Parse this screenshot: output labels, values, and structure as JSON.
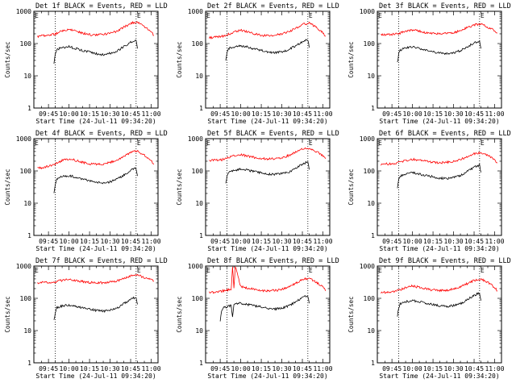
{
  "figure": {
    "background": "#ffffff",
    "series_colors": {
      "events": "#000000",
      "lld": "#ff0000"
    },
    "panel_type": "line",
    "y_scale": "log",
    "y_ylim": [
      1,
      1000
    ],
    "ylabel": "Counts/sec",
    "xlabel": "Start Time (24-Jul-11 09:34:20)",
    "x_tick_labels": [
      "09:45",
      "10:00",
      "10:15",
      "10:30",
      "10:45",
      "11:00"
    ],
    "y_tick_labels": [
      "1",
      "10",
      "100",
      "1000"
    ],
    "marker_labels": [
      "E",
      "E"
    ],
    "vertical_dotted_lines": [
      "09:50",
      "10:49"
    ]
  },
  "chart_data": [
    {
      "type": "line",
      "title": "Det 1f BLACK = Events, RED = LLD",
      "xlabel": "Start Time (24-Jul-11 09:34:20)",
      "ylabel": "Counts/sec",
      "yscale": "log",
      "ylim": [
        1,
        1000
      ],
      "x_tick_labels": [
        "09:45",
        "10:00",
        "10:15",
        "10:30",
        "10:45",
        "11:00"
      ],
      "y_tick_labels": [
        "1",
        "10",
        "100",
        "1000"
      ],
      "series": [
        {
          "x": [
            "09:37",
            "09:42",
            "09:47",
            "09:50",
            "09:55",
            "10:00",
            "10:05",
            "10:10",
            "10:15",
            "10:20",
            "10:25",
            "10:30",
            "10:35",
            "10:40",
            "10:45",
            "10:50",
            "10:55",
            "11:00",
            "11:02"
          ],
          "values": [
            165,
            175,
            185,
            200,
            250,
            275,
            240,
            210,
            190,
            185,
            190,
            210,
            240,
            320,
            420,
            480,
            330,
            230,
            180
          ],
          "color": "#ff0000"
        },
        {
          "x": [
            "09:49",
            "09:50",
            "09:51",
            "09:55",
            "10:00",
            "10:05",
            "10:10",
            "10:15",
            "10:20",
            "10:25",
            "10:30",
            "10:35",
            "10:40",
            "10:45",
            "10:49",
            "10:50"
          ],
          "values": [
            25,
            45,
            65,
            75,
            80,
            70,
            60,
            55,
            48,
            45,
            50,
            58,
            80,
            110,
            125,
            70
          ],
          "color": "#000000"
        }
      ]
    },
    {
      "type": "line",
      "title": "Det 2f BLACK = Events, RED = LLD",
      "xlabel": "Start Time (24-Jul-11 09:34:20)",
      "ylabel": "Counts/sec",
      "yscale": "log",
      "ylim": [
        1,
        1000
      ],
      "x_tick_labels": [
        "09:45",
        "10:00",
        "10:15",
        "10:30",
        "10:45",
        "11:00"
      ],
      "y_tick_labels": [
        "1",
        "10",
        "100",
        "1000"
      ],
      "series": [
        {
          "x": [
            "09:37",
            "09:42",
            "09:47",
            "09:50",
            "09:55",
            "10:00",
            "10:05",
            "10:10",
            "10:15",
            "10:20",
            "10:25",
            "10:30",
            "10:35",
            "10:40",
            "10:45",
            "10:50",
            "10:55",
            "11:00",
            "11:02"
          ],
          "values": [
            150,
            160,
            170,
            185,
            230,
            260,
            230,
            200,
            180,
            175,
            180,
            200,
            230,
            300,
            390,
            430,
            320,
            220,
            170
          ],
          "color": "#ff0000"
        },
        {
          "x": [
            "09:49",
            "09:50",
            "09:51",
            "09:55",
            "10:00",
            "10:05",
            "10:10",
            "10:15",
            "10:20",
            "10:25",
            "10:30",
            "10:35",
            "10:40",
            "10:45",
            "10:49",
            "10:50"
          ],
          "values": [
            30,
            55,
            70,
            80,
            85,
            78,
            68,
            62,
            55,
            52,
            56,
            65,
            85,
            115,
            130,
            75
          ],
          "color": "#000000"
        }
      ]
    },
    {
      "type": "line",
      "title": "Det 3f BLACK = Events, RED = LLD",
      "xlabel": "Start Time (24-Jul-11 09:34:20)",
      "ylabel": "Counts/sec",
      "yscale": "log",
      "ylim": [
        1,
        1000
      ],
      "x_tick_labels": [
        "09:45",
        "10:00",
        "10:15",
        "10:30",
        "10:45",
        "11:00"
      ],
      "y_tick_labels": [
        "1",
        "10",
        "100",
        "1000"
      ],
      "series": [
        {
          "x": [
            "09:37",
            "09:42",
            "09:47",
            "09:50",
            "09:55",
            "10:00",
            "10:05",
            "10:10",
            "10:15",
            "10:20",
            "10:25",
            "10:30",
            "10:35",
            "10:40",
            "10:45",
            "10:50",
            "10:55",
            "11:00",
            "11:02"
          ],
          "values": [
            185,
            190,
            195,
            205,
            240,
            260,
            240,
            220,
            205,
            200,
            205,
            220,
            250,
            310,
            380,
            410,
            320,
            250,
            210
          ],
          "color": "#ff0000"
        },
        {
          "x": [
            "09:49",
            "09:50",
            "09:51",
            "09:55",
            "10:00",
            "10:05",
            "10:10",
            "10:15",
            "10:20",
            "10:25",
            "10:30",
            "10:35",
            "10:40",
            "10:45",
            "10:49",
            "10:50"
          ],
          "values": [
            25,
            50,
            62,
            72,
            78,
            70,
            62,
            56,
            50,
            48,
            52,
            60,
            78,
            105,
            120,
            70
          ],
          "color": "#000000"
        }
      ]
    },
    {
      "type": "line",
      "title": "Det 4f BLACK = Events, RED = LLD",
      "xlabel": "Start Time (24-Jul-11 09:34:20)",
      "ylabel": "Counts/sec",
      "yscale": "log",
      "ylim": [
        1,
        1000
      ],
      "x_tick_labels": [
        "09:45",
        "10:00",
        "10:15",
        "10:30",
        "10:45",
        "11:00"
      ],
      "y_tick_labels": [
        "1",
        "10",
        "100",
        "1000"
      ],
      "series": [
        {
          "x": [
            "09:37",
            "09:42",
            "09:47",
            "09:50",
            "09:55",
            "10:00",
            "10:05",
            "10:10",
            "10:15",
            "10:20",
            "10:25",
            "10:30",
            "10:35",
            "10:40",
            "10:45",
            "10:50",
            "10:55",
            "11:00",
            "11:02"
          ],
          "values": [
            120,
            130,
            145,
            165,
            210,
            240,
            210,
            185,
            165,
            160,
            165,
            185,
            215,
            290,
            380,
            420,
            310,
            210,
            160
          ],
          "color": "#ff0000"
        },
        {
          "x": [
            "09:49",
            "09:50",
            "09:51",
            "09:55",
            "10:00",
            "10:05",
            "10:10",
            "10:15",
            "10:20",
            "10:25",
            "10:30",
            "10:35",
            "10:40",
            "10:45",
            "10:49",
            "10:50"
          ],
          "values": [
            22,
            40,
            58,
            68,
            72,
            64,
            55,
            50,
            44,
            42,
            46,
            55,
            75,
            105,
            120,
            70
          ],
          "color": "#000000"
        }
      ]
    },
    {
      "type": "line",
      "title": "Det 5f BLACK = Events, RED = LLD",
      "xlabel": "Start Time (24-Jul-11 09:34:20)",
      "ylabel": "Counts/sec",
      "yscale": "log",
      "ylim": [
        1,
        1000
      ],
      "x_tick_labels": [
        "09:45",
        "10:00",
        "10:15",
        "10:30",
        "10:45",
        "11:00"
      ],
      "y_tick_labels": [
        "1",
        "10",
        "100",
        "1000"
      ],
      "series": [
        {
          "x": [
            "09:37",
            "09:42",
            "09:47",
            "09:50",
            "09:55",
            "10:00",
            "10:05",
            "10:10",
            "10:15",
            "10:20",
            "10:25",
            "10:30",
            "10:35",
            "10:40",
            "10:45",
            "10:50",
            "10:55",
            "11:00",
            "11:02"
          ],
          "values": [
            210,
            215,
            225,
            250,
            300,
            320,
            290,
            260,
            240,
            235,
            240,
            260,
            300,
            380,
            470,
            510,
            400,
            300,
            240
          ],
          "color": "#ff0000"
        },
        {
          "x": [
            "09:49",
            "09:50",
            "09:51",
            "09:55",
            "10:00",
            "10:05",
            "10:10",
            "10:15",
            "10:20",
            "10:25",
            "10:30",
            "10:35",
            "10:40",
            "10:45",
            "10:49",
            "10:50"
          ],
          "values": [
            40,
            70,
            90,
            105,
            115,
            105,
            95,
            88,
            80,
            78,
            82,
            92,
            120,
            165,
            190,
            110
          ],
          "color": "#000000"
        }
      ]
    },
    {
      "type": "line",
      "title": "Det 6f BLACK = Events, RED = LLD",
      "xlabel": "Start Time (24-Jul-11 09:34:20)",
      "ylabel": "Counts/sec",
      "yscale": "log",
      "ylim": [
        1,
        1000
      ],
      "x_tick_labels": [
        "09:45",
        "10:00",
        "10:15",
        "10:30",
        "10:45",
        "11:00"
      ],
      "y_tick_labels": [
        "1",
        "10",
        "100",
        "1000"
      ],
      "series": [
        {
          "x": [
            "09:37",
            "09:42",
            "09:47",
            "09:50",
            "09:55",
            "10:00",
            "10:05",
            "10:10",
            "10:15",
            "10:20",
            "10:25",
            "10:30",
            "10:35",
            "10:40",
            "10:45",
            "10:50",
            "10:55",
            "11:00",
            "11:02"
          ],
          "values": [
            160,
            165,
            170,
            180,
            210,
            230,
            215,
            200,
            185,
            180,
            185,
            200,
            225,
            275,
            340,
            370,
            300,
            220,
            180
          ],
          "color": "#ff0000"
        },
        {
          "x": [
            "09:49",
            "09:50",
            "09:51",
            "09:55",
            "10:00",
            "10:05",
            "10:10",
            "10:15",
            "10:20",
            "10:25",
            "10:30",
            "10:35",
            "10:40",
            "10:45",
            "10:49",
            "10:50"
          ],
          "values": [
            30,
            55,
            70,
            80,
            88,
            80,
            72,
            66,
            60,
            58,
            62,
            72,
            95,
            130,
            150,
            90
          ],
          "color": "#000000"
        }
      ]
    },
    {
      "type": "line",
      "title": "Det 7f BLACK = Events, RED = LLD",
      "xlabel": "Start Time (24-Jul-11 09:34:20)",
      "ylabel": "Counts/sec",
      "yscale": "log",
      "ylim": [
        1,
        1000
      ],
      "x_tick_labels": [
        "09:45",
        "10:00",
        "10:15",
        "10:30",
        "10:45",
        "11:00"
      ],
      "y_tick_labels": [
        "1",
        "10",
        "100",
        "1000"
      ],
      "series": [
        {
          "x": [
            "09:37",
            "09:42",
            "09:47",
            "09:50",
            "09:55",
            "10:00",
            "10:05",
            "10:10",
            "10:15",
            "10:20",
            "10:25",
            "10:30",
            "10:35",
            "10:40",
            "10:45",
            "10:50",
            "10:55",
            "11:00",
            "11:02"
          ],
          "values": [
            300,
            310,
            315,
            325,
            360,
            380,
            355,
            330,
            310,
            300,
            305,
            320,
            350,
            410,
            490,
            530,
            440,
            380,
            340
          ],
          "color": "#ff0000"
        },
        {
          "x": [
            "09:49",
            "09:50",
            "09:51",
            "09:55",
            "10:00",
            "10:05",
            "10:10",
            "10:15",
            "10:20",
            "10:25",
            "10:30",
            "10:35",
            "10:40",
            "10:45",
            "10:49",
            "10:50"
          ],
          "values": [
            20,
            38,
            50,
            58,
            62,
            56,
            50,
            46,
            42,
            40,
            43,
            50,
            68,
            92,
            110,
            65
          ],
          "color": "#000000"
        }
      ]
    },
    {
      "type": "line",
      "title": "Det 8f BLACK = Events, RED = LLD",
      "xlabel": "Start Time (24-Jul-11 09:34:20)",
      "ylabel": "Counts/sec",
      "yscale": "log",
      "ylim": [
        1,
        1000
      ],
      "x_tick_labels": [
        "09:45",
        "10:00",
        "10:15",
        "10:30",
        "10:45",
        "11:00"
      ],
      "y_tick_labels": [
        "1",
        "10",
        "100",
        "1000"
      ],
      "series": [
        {
          "x": [
            "09:37",
            "09:42",
            "09:47",
            "09:50",
            "09:53",
            "09:54",
            "09:55",
            "09:56",
            "10:00",
            "10:05",
            "10:10",
            "10:15",
            "10:20",
            "10:25",
            "10:30",
            "10:35",
            "10:40",
            "10:45",
            "10:50",
            "10:55",
            "11:00",
            "11:02"
          ],
          "values": [
            150,
            160,
            170,
            180,
            190,
            1000,
            200,
            1000,
            230,
            210,
            190,
            175,
            170,
            175,
            190,
            220,
            290,
            380,
            420,
            320,
            220,
            170
          ],
          "color": "#ff0000"
        },
        {
          "x": [
            "09:45",
            "09:46",
            "09:47",
            "09:50",
            "09:53",
            "09:54",
            "09:55",
            "10:00",
            "10:05",
            "10:10",
            "10:15",
            "10:20",
            "10:25",
            "10:30",
            "10:35",
            "10:40",
            "10:45",
            "10:49",
            "10:50"
          ],
          "values": [
            20,
            40,
            50,
            55,
            60,
            28,
            65,
            70,
            64,
            58,
            54,
            48,
            46,
            50,
            58,
            78,
            105,
            120,
            70
          ],
          "color": "#000000"
        }
      ]
    },
    {
      "type": "line",
      "title": "Det 9f BLACK = Events, RED = LLD",
      "xlabel": "Start Time (24-Jul-11 09:34:20)",
      "ylabel": "Counts/sec",
      "yscale": "log",
      "ylim": [
        1,
        1000
      ],
      "x_tick_labels": [
        "09:45",
        "10:00",
        "10:15",
        "10:30",
        "10:45",
        "11:00"
      ],
      "y_tick_labels": [
        "1",
        "10",
        "100",
        "1000"
      ],
      "series": [
        {
          "x": [
            "09:37",
            "09:42",
            "09:47",
            "09:50",
            "09:55",
            "10:00",
            "10:05",
            "10:10",
            "10:15",
            "10:20",
            "10:25",
            "10:30",
            "10:35",
            "10:40",
            "10:45",
            "10:50",
            "10:55",
            "11:00",
            "11:02"
          ],
          "values": [
            150,
            155,
            165,
            180,
            215,
            240,
            220,
            195,
            180,
            175,
            180,
            195,
            225,
            285,
            360,
            400,
            310,
            220,
            170
          ],
          "color": "#ff0000"
        },
        {
          "x": [
            "09:49",
            "09:50",
            "09:51",
            "09:55",
            "10:00",
            "10:05",
            "10:10",
            "10:15",
            "10:20",
            "10:25",
            "10:30",
            "10:35",
            "10:40",
            "10:45",
            "10:49",
            "10:50"
          ],
          "values": [
            28,
            52,
            68,
            78,
            85,
            78,
            70,
            64,
            58,
            56,
            60,
            68,
            90,
            125,
            145,
            85
          ],
          "color": "#000000"
        }
      ]
    }
  ]
}
